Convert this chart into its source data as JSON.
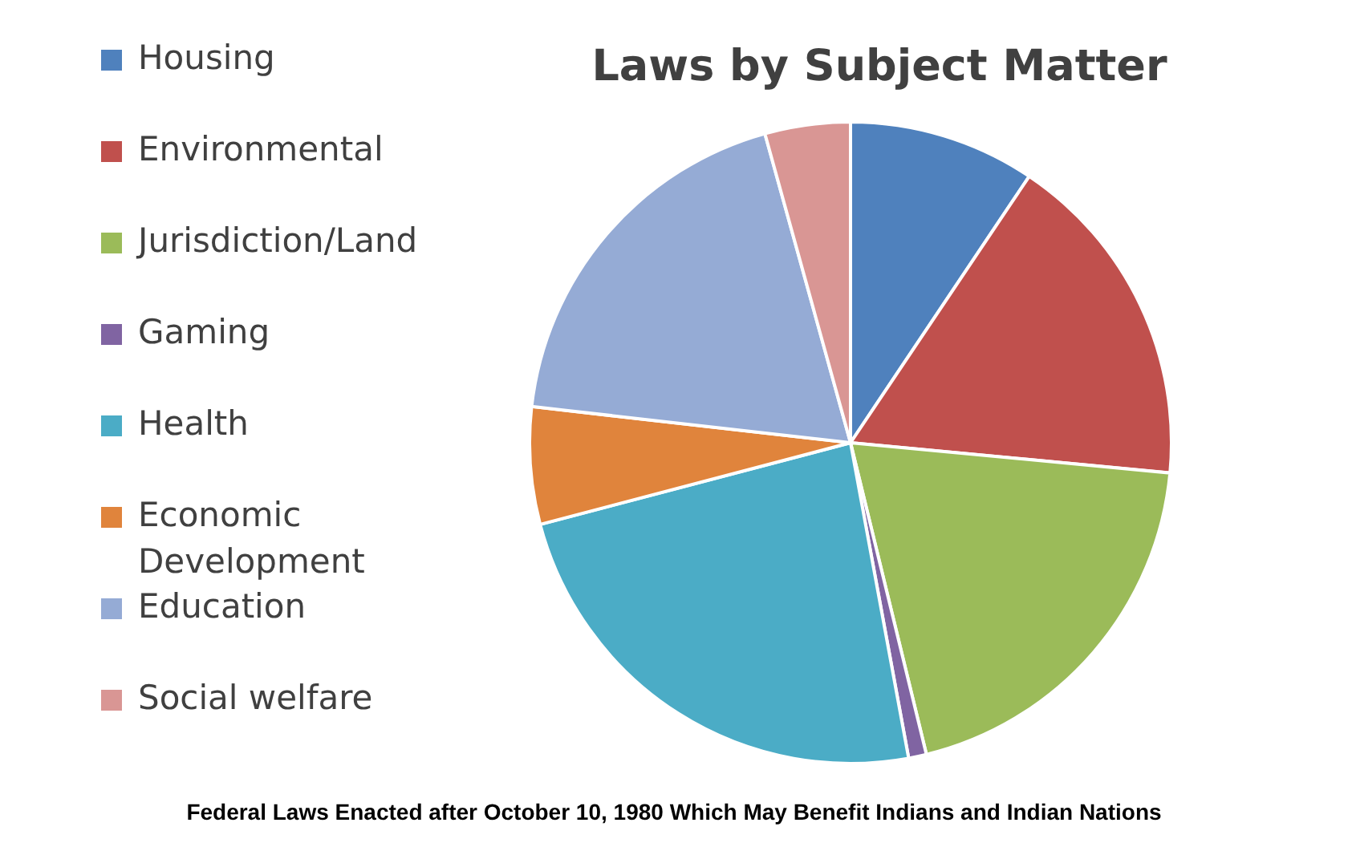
{
  "chart_data": {
    "type": "pie",
    "title": "Laws by Subject Matter",
    "categories": [
      "Housing",
      "Environmental",
      "Jurisdiction/Land",
      "Gaming",
      "Health",
      "Economic Development",
      "Education",
      "Social welfare"
    ],
    "values": [
      9.4,
      17.1,
      19.7,
      0.9,
      23.8,
      5.9,
      18.9,
      4.3
    ],
    "colors": [
      "#4f81bd",
      "#c0504d",
      "#9bbb59",
      "#8064a2",
      "#4bacc6",
      "#e0843c",
      "#95abd5",
      "#d99694"
    ],
    "legend": "left",
    "annotations": [
      "Federal Laws Enacted after October 10, 1980 Which May Benefit Indians and Indian Nations"
    ]
  }
}
